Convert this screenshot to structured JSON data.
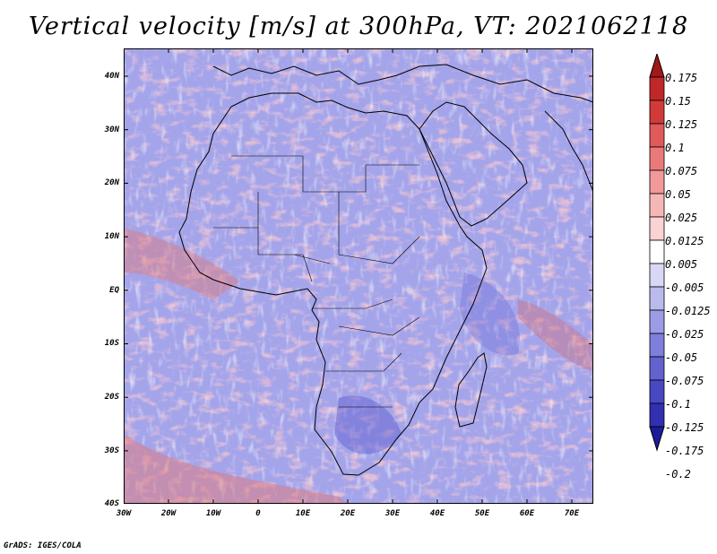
{
  "title": "Vertical velocity [m/s] at 300hPa, VT: 2021062118",
  "credit": "GrADS: IGES/COLA",
  "axes": {
    "lat_labels": [
      "40N",
      "30N",
      "20N",
      "10N",
      "EQ",
      "10S",
      "20S",
      "30S",
      "40S"
    ],
    "lon_labels": [
      "30W",
      "20W",
      "10W",
      "0",
      "10E",
      "20E",
      "30E",
      "40E",
      "50E",
      "60E",
      "70E"
    ]
  },
  "colorbar": {
    "labels": [
      "0.175",
      "0.15",
      "0.125",
      "0.1",
      "0.075",
      "0.05",
      "0.025",
      "0.0125",
      "0.005",
      "-0.005",
      "-0.0125",
      "-0.025",
      "-0.05",
      "-0.075",
      "-0.1",
      "-0.125",
      "-0.175",
      "-0.2"
    ],
    "colors": [
      "#a01818",
      "#c02828",
      "#d23a3a",
      "#e05a5a",
      "#ea7a7a",
      "#f29999",
      "#f7b6b6",
      "#fbd3d3",
      "#ffffff",
      "#d8d8f6",
      "#babaee",
      "#9c9ce6",
      "#7e7edc",
      "#6262d0",
      "#4848c2",
      "#3030b0",
      "#1c1c9a"
    ]
  },
  "map": {
    "region": "Africa",
    "lon_range": [
      -30,
      75
    ],
    "lat_range": [
      -40,
      45
    ],
    "field_colors": {
      "ocean": "#a8a8ec",
      "positive": "#f0a0a0",
      "negative": "#9494e4",
      "strong_positive": "#d84848",
      "strong_negative": "#5a5ad0"
    }
  }
}
